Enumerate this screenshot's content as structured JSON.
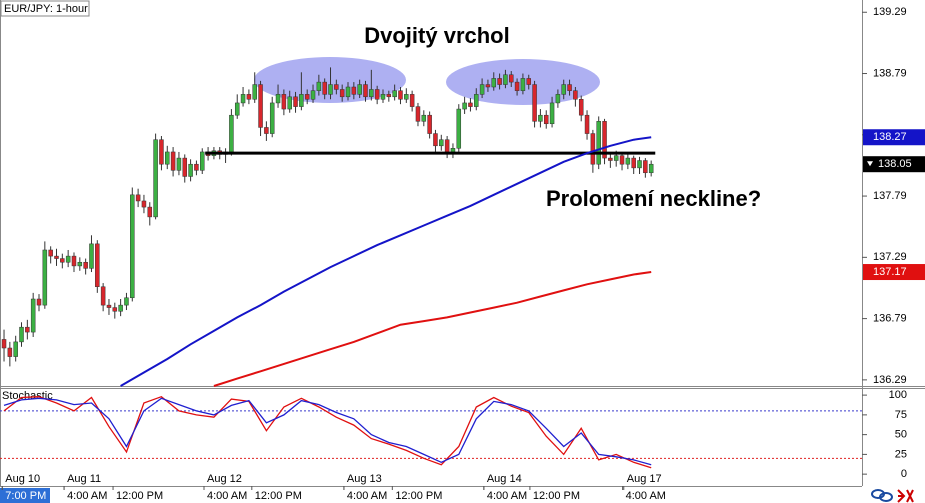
{
  "chart_data": [
    {
      "type": "candlestick",
      "title": "EUR/JPY: 1-hour",
      "annotations": [
        "Dvojitý vrchol",
        "Prolomení neckline?"
      ],
      "up_color": "#3cb043",
      "down_color": "#d8262c",
      "open": [
        136.62,
        136.55,
        136.48,
        136.6,
        136.72,
        136.68,
        136.95,
        136.9,
        137.35,
        137.3,
        137.28,
        137.25,
        137.3,
        137.22,
        137.25,
        137.2,
        137.4,
        137.05,
        136.9,
        136.88,
        136.85,
        136.9,
        136.96,
        137.8,
        137.75,
        137.7,
        137.62,
        138.25,
        138.05,
        138.15,
        138.0,
        138.1,
        137.95,
        138.05,
        138.0,
        138.15,
        138.12,
        138.16,
        138.13,
        138.15,
        138.45,
        138.55,
        138.62,
        138.58,
        138.7,
        138.35,
        138.3,
        138.55,
        138.62,
        138.5,
        138.6,
        138.52,
        138.62,
        138.58,
        138.65,
        138.72,
        138.62,
        138.7,
        138.66,
        138.6,
        138.68,
        138.62,
        138.7,
        138.6,
        138.66,
        138.58,
        138.62,
        138.6,
        138.65,
        138.58,
        138.62,
        138.52,
        138.4,
        138.45,
        138.3,
        138.2,
        138.25,
        138.15,
        138.18,
        138.5,
        138.55,
        138.52,
        138.62,
        138.7,
        138.68,
        138.75,
        138.7,
        138.78,
        138.72,
        138.65,
        138.75,
        138.7,
        138.4,
        138.45,
        138.38,
        138.55,
        138.62,
        138.7,
        138.65,
        138.58,
        138.45,
        138.3,
        138.05,
        138.4,
        138.1,
        138.08,
        138.12,
        138.05,
        138.1,
        138.02,
        138.08,
        137.98
      ],
      "high": [
        136.7,
        136.6,
        136.65,
        136.76,
        136.78,
        137.0,
        136.99,
        137.42,
        137.38,
        137.36,
        137.32,
        137.35,
        137.33,
        137.29,
        137.28,
        137.47,
        137.43,
        137.08,
        136.95,
        136.92,
        136.95,
        137.0,
        137.86,
        137.85,
        137.8,
        137.74,
        138.3,
        138.28,
        138.2,
        138.19,
        138.15,
        138.13,
        138.09,
        138.08,
        138.18,
        138.19,
        138.19,
        138.19,
        138.18,
        138.5,
        138.62,
        138.68,
        138.66,
        138.8,
        138.73,
        138.4,
        138.6,
        138.7,
        138.66,
        138.65,
        138.64,
        138.8,
        138.66,
        138.7,
        138.78,
        138.75,
        138.84,
        138.74,
        138.7,
        138.72,
        138.72,
        138.74,
        138.73,
        138.82,
        138.69,
        138.66,
        138.65,
        138.7,
        138.68,
        138.67,
        138.65,
        138.55,
        138.49,
        138.48,
        138.33,
        138.29,
        138.28,
        138.22,
        138.54,
        138.6,
        138.59,
        138.67,
        138.75,
        138.74,
        138.8,
        138.79,
        138.82,
        138.81,
        138.75,
        138.79,
        138.78,
        138.73,
        138.5,
        138.49,
        138.6,
        138.66,
        138.74,
        138.74,
        138.68,
        138.61,
        138.49,
        138.33,
        138.44,
        138.42,
        138.14,
        138.16,
        138.15,
        138.13,
        138.12,
        138.11,
        138.1,
        138.08
      ],
      "low": [
        136.44,
        136.4,
        136.44,
        136.56,
        136.62,
        136.64,
        136.85,
        136.87,
        137.24,
        137.22,
        137.2,
        137.21,
        137.17,
        137.18,
        137.15,
        137.17,
        137.0,
        136.85,
        136.82,
        136.79,
        136.81,
        136.86,
        136.93,
        137.7,
        137.65,
        137.55,
        137.6,
        138.0,
        138.01,
        137.95,
        137.96,
        137.9,
        137.91,
        137.96,
        137.97,
        138.08,
        138.09,
        138.09,
        138.06,
        138.12,
        138.42,
        138.52,
        138.54,
        138.55,
        138.28,
        138.24,
        138.27,
        138.51,
        138.45,
        138.47,
        138.47,
        138.49,
        138.54,
        138.55,
        138.61,
        138.58,
        138.58,
        138.62,
        138.56,
        138.57,
        138.58,
        138.59,
        138.56,
        138.57,
        138.54,
        138.55,
        138.56,
        138.57,
        138.54,
        138.55,
        138.48,
        138.36,
        138.36,
        138.26,
        138.15,
        138.16,
        138.1,
        138.1,
        138.15,
        138.46,
        138.48,
        138.49,
        138.59,
        138.64,
        138.65,
        138.66,
        138.67,
        138.68,
        138.61,
        138.62,
        138.66,
        138.35,
        138.35,
        138.34,
        138.35,
        138.51,
        138.58,
        138.61,
        138.52,
        138.4,
        138.25,
        137.98,
        138.01,
        138.05,
        138.02,
        138.03,
        138.0,
        138.01,
        137.97,
        137.97,
        137.94,
        137.95
      ],
      "close": [
        136.55,
        136.48,
        136.6,
        136.72,
        136.68,
        136.95,
        136.9,
        137.35,
        137.3,
        137.28,
        137.25,
        137.3,
        137.22,
        137.25,
        137.2,
        137.4,
        137.05,
        136.9,
        136.88,
        136.85,
        136.9,
        136.96,
        137.8,
        137.75,
        137.7,
        137.62,
        138.25,
        138.05,
        138.15,
        138.0,
        138.1,
        137.95,
        138.05,
        138.0,
        138.15,
        138.12,
        138.16,
        138.13,
        138.15,
        138.45,
        138.55,
        138.62,
        138.58,
        138.7,
        138.35,
        138.3,
        138.55,
        138.62,
        138.5,
        138.6,
        138.52,
        138.62,
        138.58,
        138.65,
        138.72,
        138.62,
        138.7,
        138.66,
        138.6,
        138.68,
        138.62,
        138.7,
        138.6,
        138.66,
        138.58,
        138.62,
        138.6,
        138.65,
        138.58,
        138.62,
        138.52,
        138.4,
        138.45,
        138.3,
        138.2,
        138.25,
        138.15,
        138.18,
        138.5,
        138.55,
        138.52,
        138.62,
        138.7,
        138.68,
        138.75,
        138.7,
        138.78,
        138.72,
        138.65,
        138.75,
        138.7,
        138.4,
        138.45,
        138.38,
        138.55,
        138.62,
        138.7,
        138.65,
        138.58,
        138.45,
        138.3,
        138.05,
        138.4,
        138.1,
        138.08,
        138.12,
        138.05,
        138.1,
        138.02,
        138.08,
        137.98,
        138.05
      ],
      "series": [
        {
          "color": "#1414c8",
          "x": [
            20,
            24,
            28,
            32,
            36,
            40,
            44,
            48,
            52,
            56,
            60,
            64,
            68,
            72,
            76,
            80,
            84,
            88,
            92,
            96,
            100,
            104,
            108,
            111
          ],
          "values": [
            136.24,
            136.35,
            136.46,
            136.58,
            136.69,
            136.8,
            136.9,
            137.01,
            137.11,
            137.21,
            137.3,
            137.39,
            137.47,
            137.55,
            137.63,
            137.71,
            137.8,
            137.89,
            137.98,
            138.07,
            138.14,
            138.2,
            138.25,
            138.27
          ]
        },
        {
          "color": "#e01010",
          "x": [
            36,
            40,
            44,
            48,
            52,
            56,
            60,
            64,
            68,
            72,
            76,
            80,
            84,
            88,
            92,
            96,
            100,
            104,
            108,
            111
          ],
          "values": [
            136.24,
            136.3,
            136.36,
            136.42,
            136.48,
            136.54,
            136.6,
            136.67,
            136.74,
            136.77,
            136.8,
            136.84,
            136.88,
            136.92,
            136.97,
            137.02,
            137.07,
            137.11,
            137.15,
            137.17
          ]
        }
      ],
      "neckline": {
        "value": 138.14,
        "x": [
          34.5,
          111.7
        ],
        "color": "#000000"
      },
      "xlim": [
        -0.69,
        147.16
      ],
      "ylim": [
        136.24,
        139.39
      ],
      "yticks": [
        136.29,
        136.79,
        137.29,
        137.79,
        138.29,
        138.79,
        139.29
      ],
      "xticks_dates": [
        {
          "value": -0.3,
          "label": "Aug 10"
        },
        {
          "value": 10.3,
          "label": "Aug 11"
        },
        {
          "value": 34.3,
          "label": "Aug 12"
        },
        {
          "value": 58.3,
          "label": "Aug 13"
        },
        {
          "value": 82.3,
          "label": "Aug 14"
        },
        {
          "value": 106.3,
          "label": "Aug 17"
        }
      ],
      "xticks_times": [
        {
          "value": -0.3,
          "label": "7:00 PM"
        },
        {
          "value": 10.3,
          "label": "4:00 AM"
        },
        {
          "value": 18.7,
          "label": "12:00 PM"
        },
        {
          "value": 34.3,
          "label": "4:00 AM"
        },
        {
          "value": 42.5,
          "label": "12:00 PM"
        },
        {
          "value": 58.3,
          "label": "4:00 AM"
        },
        {
          "value": 66.6,
          "label": "12:00 PM"
        },
        {
          "value": 82.3,
          "label": "4:00 AM"
        },
        {
          "value": 90.2,
          "label": "12:00 PM"
        },
        {
          "value": 106.1,
          "label": "4:00 AM"
        }
      ]
    },
    {
      "type": "line",
      "title": "Stochastic",
      "x": [
        0,
        3,
        6,
        9,
        12,
        15,
        18,
        21,
        24,
        27,
        30,
        33,
        36,
        39,
        42,
        45,
        48,
        51,
        54,
        57,
        60,
        63,
        66,
        69,
        72,
        75,
        78,
        81,
        84,
        87,
        90,
        93,
        96,
        99,
        102,
        105,
        108,
        111
      ],
      "series": [
        {
          "color": "#e01010",
          "values": [
            80,
            97,
            98,
            90,
            80,
            97,
            60,
            28,
            90,
            98,
            80,
            75,
            72,
            95,
            92,
            55,
            85,
            96,
            85,
            72,
            62,
            45,
            38,
            30,
            20,
            12,
            35,
            85,
            97,
            86,
            78,
            48,
            25,
            58,
            18,
            25,
            15,
            8
          ]
        },
        {
          "color": "#2020d0",
          "values": [
            87,
            94,
            96,
            94,
            88,
            90,
            70,
            35,
            80,
            96,
            88,
            80,
            75,
            87,
            93,
            65,
            75,
            93,
            88,
            78,
            70,
            50,
            40,
            35,
            25,
            15,
            25,
            70,
            92,
            88,
            80,
            58,
            35,
            52,
            25,
            22,
            18,
            12
          ]
        }
      ],
      "levels": [
        {
          "value": 80,
          "color": "#3a3acc"
        },
        {
          "value": 20,
          "color": "#e02020"
        }
      ],
      "xlim": [
        -0.69,
        147.16
      ],
      "ylim": [
        -15,
        109
      ],
      "yticks": [
        0,
        25,
        50,
        75,
        100
      ]
    }
  ]
}
